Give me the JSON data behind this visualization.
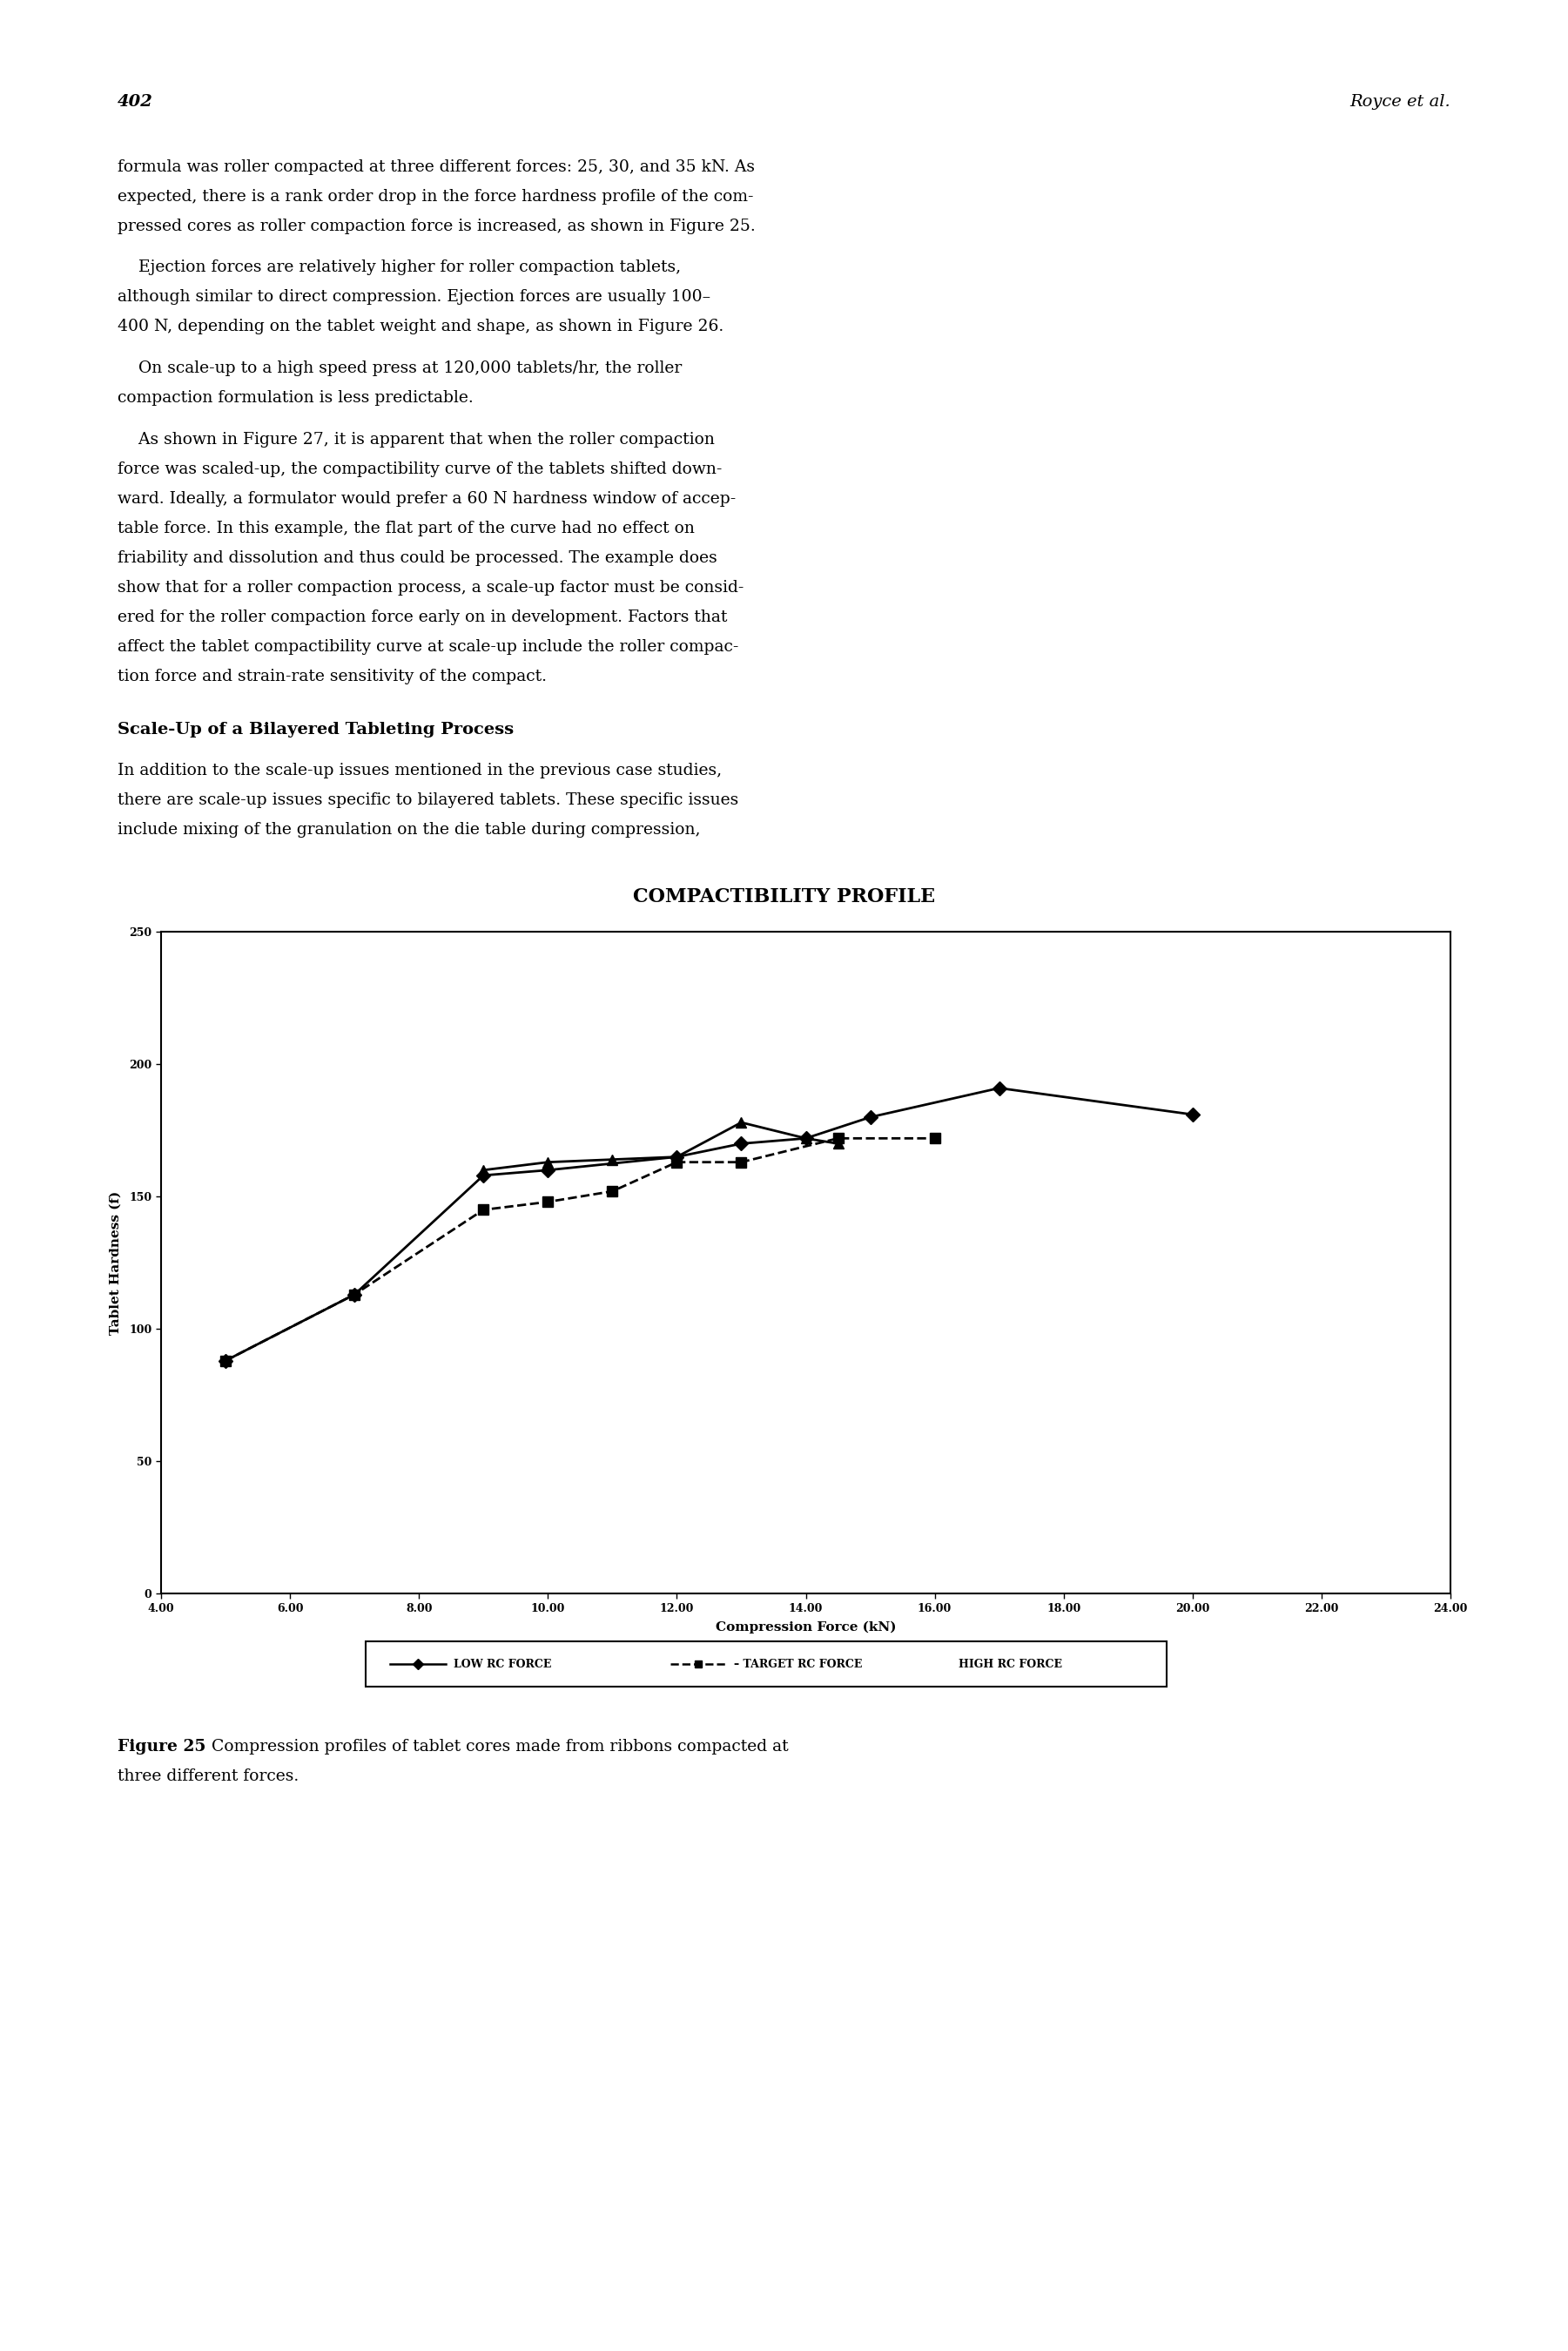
{
  "title": "COMPACTIBILITY PROFILE",
  "xlabel": "Compression Force (kN)",
  "ylabel": "Tablet Hardness (f)",
  "xlim": [
    4.0,
    24.0
  ],
  "ylim": [
    0,
    250
  ],
  "xticks": [
    4.0,
    6.0,
    8.0,
    10.0,
    12.0,
    14.0,
    16.0,
    18.0,
    20.0,
    22.0,
    24.0
  ],
  "yticks": [
    0,
    50,
    100,
    150,
    200,
    250
  ],
  "low_rc_force_x": [
    5.0,
    7.0,
    9.0,
    10.0,
    12.0,
    13.0,
    14.0,
    15.0,
    17.0,
    20.0
  ],
  "low_rc_force_y": [
    88,
    113,
    158,
    160,
    165,
    170,
    172,
    180,
    191,
    181
  ],
  "target_rc_force_x": [
    5.0,
    7.0,
    9.0,
    10.0,
    11.0,
    12.0,
    13.0,
    14.5,
    16.0
  ],
  "target_rc_force_y": [
    88,
    113,
    145,
    148,
    152,
    163,
    163,
    172,
    172
  ],
  "high_rc_force_x": [
    9.0,
    10.0,
    11.0,
    12.0,
    13.0,
    14.0,
    14.5
  ],
  "high_rc_force_y": [
    160,
    163,
    164,
    165,
    178,
    172,
    170
  ],
  "low_marker": "D",
  "target_marker": "s",
  "high_marker": "^",
  "low_linestyle": "-",
  "target_linestyle": "--",
  "high_linestyle": "-",
  "line_color": "#000000",
  "background_color": "#ffffff",
  "title_fontsize": 16,
  "axis_label_fontsize": 11,
  "tick_fontsize": 9,
  "legend_labels": [
    "LOW RC FORCE",
    "TARGET RC FORCE",
    "HIGH RC FORCE"
  ],
  "page_number": "402",
  "page_author": "Royce et al.",
  "para1_lines": [
    "formula was roller compacted at three different forces: 25, 30, and 35 kN. As",
    "expected, there is a rank order drop in the force hardness profile of the com-",
    "pressed cores as roller compaction force is increased, as shown in Figure 25."
  ],
  "para2_lines": [
    "    Ejection forces are relatively higher for roller compaction tablets,",
    "although similar to direct compression. Ejection forces are usually 100–",
    "400 N, depending on the tablet weight and shape, as shown in Figure 26."
  ],
  "para3_lines": [
    "    On scale-up to a high speed press at 120,000 tablets/hr, the roller",
    "compaction formulation is less predictable."
  ],
  "para4_lines": [
    "    As shown in Figure 27, it is apparent that when the roller compaction",
    "force was scaled-up, the compactibility curve of the tablets shifted down-",
    "ward. Ideally, a formulator would prefer a 60 N hardness window of accep-",
    "table force. In this example, the flat part of the curve had no effect on",
    "friability and dissolution and thus could be processed. The example does",
    "show that for a roller compaction process, a scale-up factor must be consid-",
    "ered for the roller compaction force early on in development. Factors that",
    "affect the tablet compactibility curve at scale-up include the roller compac-",
    "tion force and strain-rate sensitivity of the compact."
  ],
  "section_heading": "Scale-Up of a Bilayered Tableting Process",
  "para5_lines": [
    "In addition to the scale-up issues mentioned in the previous case studies,",
    "there are scale-up issues specific to bilayered tablets. These specific issues",
    "include mixing of the granulation on the die table during compression,"
  ],
  "figure_caption_bold": "Figure 25",
  "figure_caption_text": "  Compression profiles of tablet cores made from ribbons compacted at",
  "figure_caption_line2": "three different forces."
}
